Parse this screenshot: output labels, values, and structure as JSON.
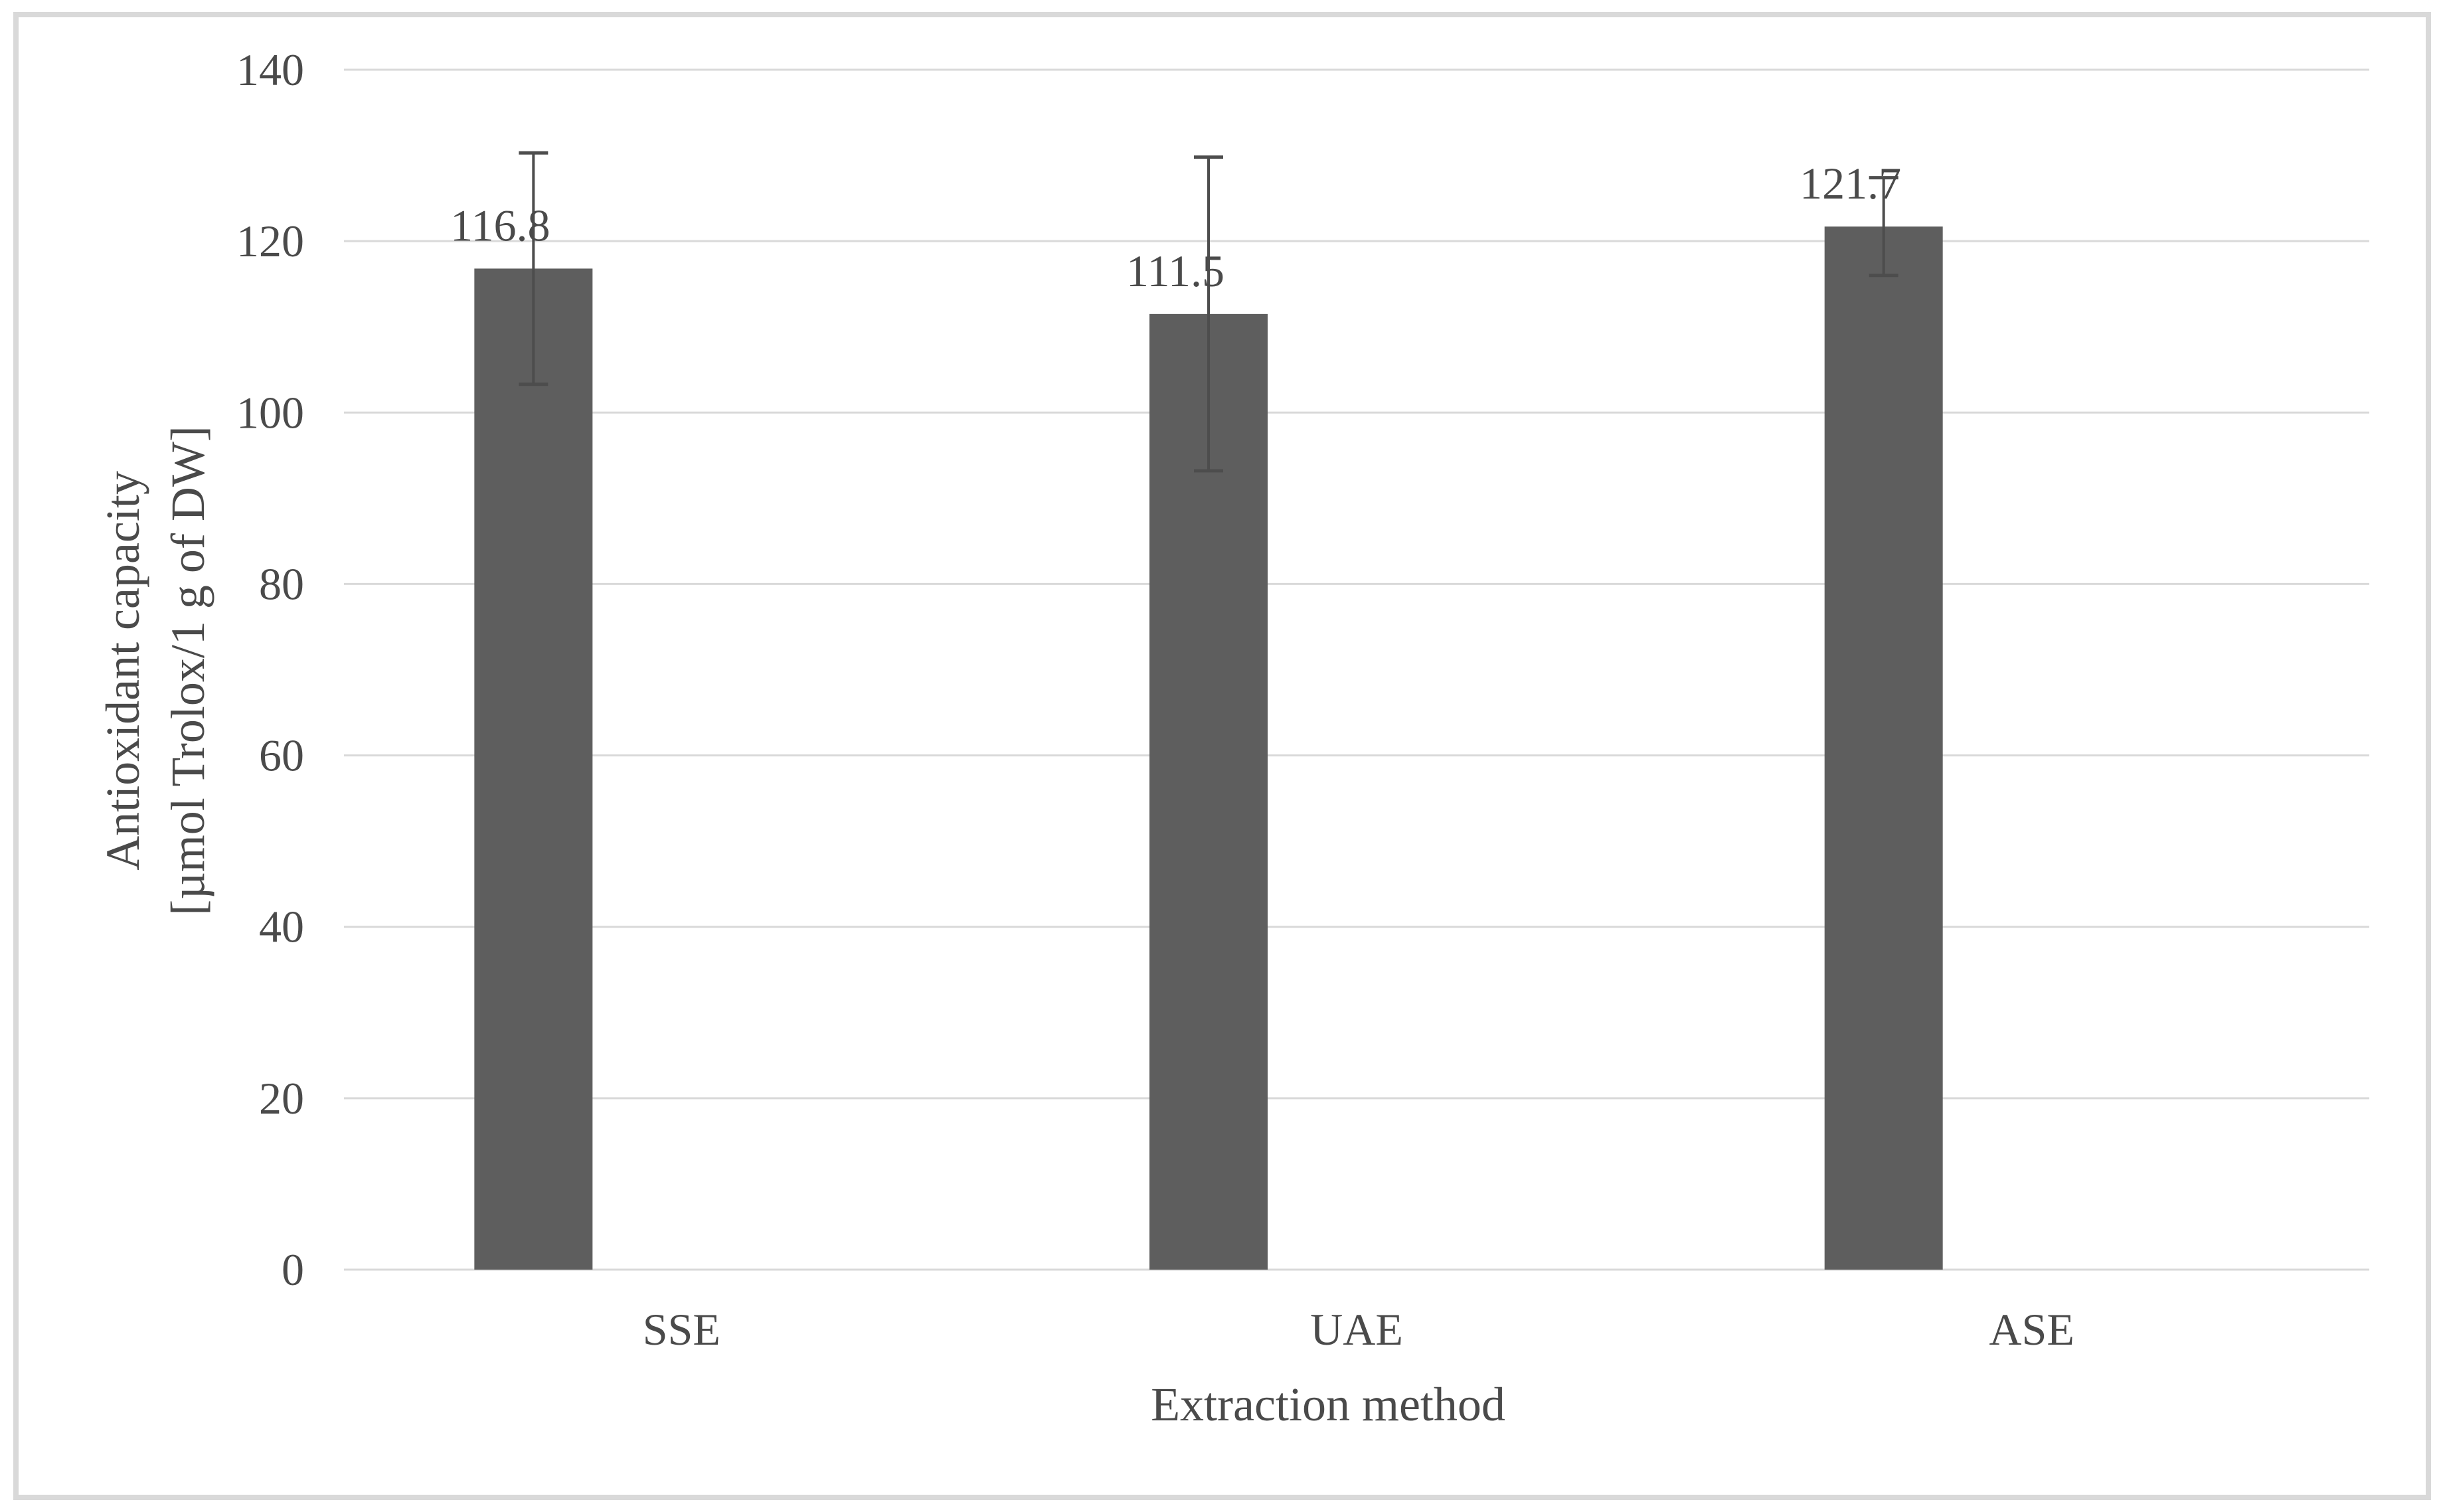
{
  "chart_data": {
    "type": "bar",
    "title": "",
    "xlabel": "Extraction method",
    "ylabel": "Antioxidant capacity [µmol Trolox/1 g of DW]",
    "ylabel_lines": [
      "Antioxidant capacity",
      "[µmol Trolox/1 g of DW]"
    ],
    "categories": [
      "SSE",
      "UAE",
      "ASE"
    ],
    "values": [
      116.8,
      111.5,
      121.7
    ],
    "value_labels": [
      "116.8",
      "111.5",
      "121.7"
    ],
    "error_bars_plus": [
      13.5,
      18.3,
      5.7
    ],
    "error_bars_minus": [
      13.5,
      18.3,
      5.7
    ],
    "yticks": [
      "0",
      "20",
      "40",
      "60",
      "80",
      "100",
      "120",
      "140"
    ],
    "ytick_values": [
      0,
      20,
      40,
      60,
      80,
      100,
      120,
      140
    ],
    "ylim": [
      0,
      140
    ],
    "grid": true,
    "legend": "none",
    "colors": {
      "bar_fill": "#5e5e5e",
      "error_bar": "#4d4d4d",
      "gridline": "#d9d9d9",
      "axis_line": "#d9d9d9",
      "text": "#4a4a4a",
      "figure_border": "#d9d9d9",
      "background": "#ffffff"
    }
  }
}
